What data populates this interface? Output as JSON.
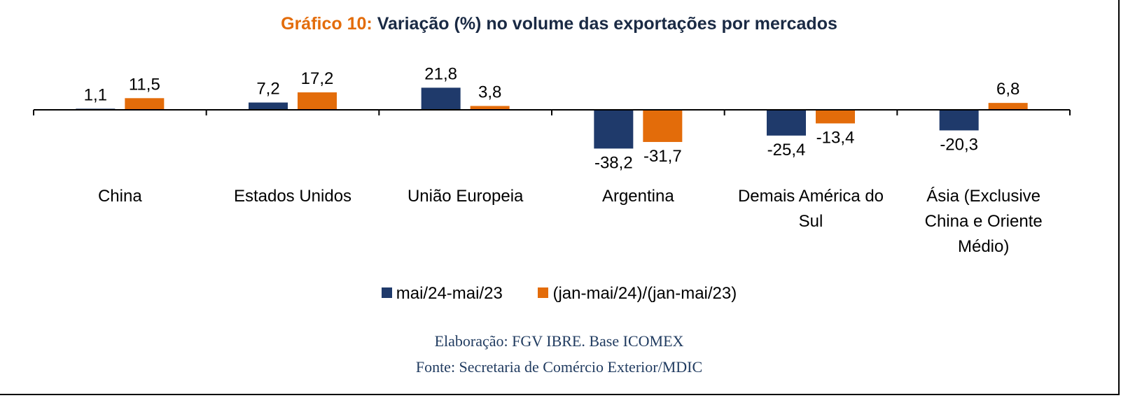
{
  "title": {
    "prefix": "Gráfico 10:",
    "main": "Variação (%) no volume das exportações por mercados"
  },
  "colors": {
    "series1": "#1f3a6b",
    "series2": "#e36c0a",
    "title_prefix": "#e36c0a",
    "title_main": "#1a2a44",
    "source": "#1f3a5f"
  },
  "chart_data": {
    "type": "bar",
    "categories": [
      [
        "China"
      ],
      [
        "Estados Unidos"
      ],
      [
        "União Europeia"
      ],
      [
        "Argentina"
      ],
      [
        "Demais América do",
        "Sul"
      ],
      [
        "Ásia (Exclusive",
        "China e Oriente",
        "Médio)"
      ]
    ],
    "series": [
      {
        "name": "mai/24-mai/23",
        "values": [
          1.1,
          7.2,
          21.8,
          -38.2,
          -25.4,
          -20.3
        ],
        "labels": [
          "1,1",
          "7,2",
          "21,8",
          "-38,2",
          "-25,4",
          "-20,3"
        ]
      },
      {
        "name": "(jan-mai/24)/(jan-mai/23)",
        "values": [
          11.5,
          17.2,
          3.8,
          -31.7,
          -13.4,
          6.8
        ],
        "labels": [
          "11,5",
          "17,2",
          "3,8",
          "-31,7",
          "-13,4",
          "6,8"
        ]
      }
    ],
    "legend_position": "bottom",
    "grid": false
  },
  "source": {
    "line1": "Elaboração: FGV IBRE. Base ICOMEX",
    "line2": "Fonte: Secretaria de Comércio Exterior/MDIC"
  }
}
